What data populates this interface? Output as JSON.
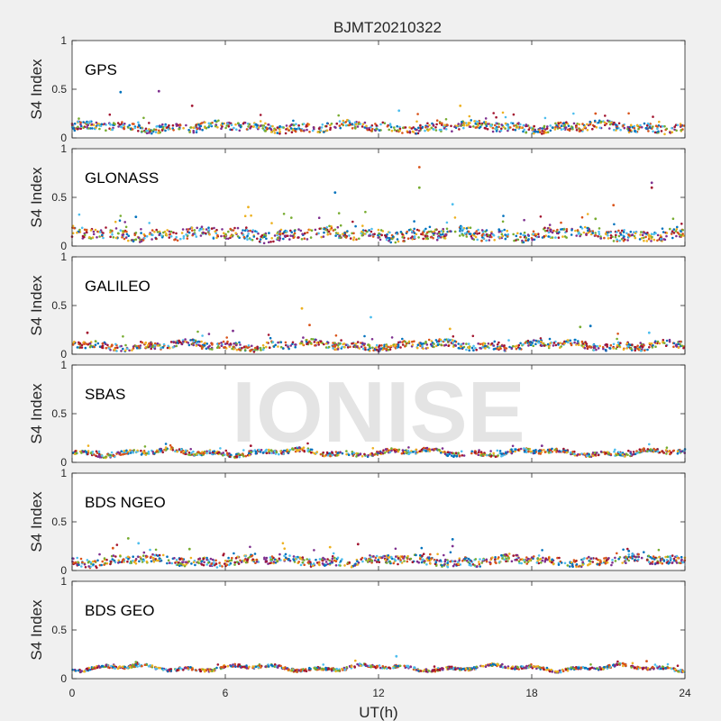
{
  "figure": {
    "title": "BJMT20210322",
    "xlabel": "UT(h)",
    "watermark": "IONISE",
    "background": "#f0f0f0",
    "axes_background": "#ffffff",
    "watermark_color": "#e0e0e0"
  },
  "palette": [
    "#0072bd",
    "#d95319",
    "#edb120",
    "#7e2f8e",
    "#77ac30",
    "#4dbeee",
    "#a2142f"
  ],
  "chart_data": [
    {
      "type": "scatter",
      "label": "GPS",
      "ylabel": "S4 Index",
      "xlim": [
        0,
        24
      ],
      "ylim": [
        0,
        1
      ],
      "xticks": [
        0,
        6,
        12,
        18,
        24
      ],
      "yticks": [
        0,
        0.5,
        1
      ],
      "baseline": 0.11,
      "spread": 0.06,
      "outliers": [
        [
          1.9,
          0.47
        ],
        [
          3.4,
          0.48
        ],
        [
          4.7,
          0.33
        ],
        [
          15.2,
          0.33
        ],
        [
          12.8,
          0.28
        ],
        [
          20.5,
          0.25
        ]
      ]
    },
    {
      "type": "scatter",
      "label": "GLONASS",
      "ylabel": "S4 Index",
      "xlim": [
        0,
        24
      ],
      "ylim": [
        0,
        1
      ],
      "xticks": [
        0,
        6,
        12,
        18,
        24
      ],
      "yticks": [
        0,
        0.5,
        1
      ],
      "baseline": 0.12,
      "spread": 0.08,
      "outliers": [
        [
          13.6,
          0.81
        ],
        [
          13.6,
          0.6
        ],
        [
          10.3,
          0.55
        ],
        [
          22.7,
          0.65
        ],
        [
          22.7,
          0.6
        ],
        [
          6.9,
          0.4
        ],
        [
          14.9,
          0.43
        ],
        [
          21.2,
          0.42
        ],
        [
          20.5,
          0.28
        ],
        [
          2.5,
          0.3
        ]
      ]
    },
    {
      "type": "scatter",
      "label": "GALILEO",
      "ylabel": "S4 Index",
      "xlim": [
        0,
        24
      ],
      "ylim": [
        0,
        1
      ],
      "xticks": [
        0,
        6,
        12,
        18,
        24
      ],
      "yticks": [
        0,
        0.5,
        1
      ],
      "baseline": 0.09,
      "spread": 0.05,
      "outliers": [
        [
          9.0,
          0.47
        ],
        [
          11.7,
          0.38
        ],
        [
          9.3,
          0.3
        ],
        [
          19.9,
          0.28
        ],
        [
          20.3,
          0.29
        ],
        [
          6.3,
          0.24
        ],
        [
          0.6,
          0.22
        ],
        [
          14.8,
          0.26
        ],
        [
          22.6,
          0.22
        ]
      ]
    },
    {
      "type": "scatter",
      "label": "SBAS",
      "ylabel": "S4 Index",
      "xlim": [
        0,
        24
      ],
      "ylim": [
        0,
        1
      ],
      "xticks": [
        0,
        6,
        12,
        18,
        24
      ],
      "yticks": [
        0,
        0.5,
        1
      ],
      "baseline": 0.1,
      "spread": 0.03,
      "outliers": [
        [
          18.4,
          0.17
        ],
        [
          7.0,
          0.17
        ]
      ]
    },
    {
      "type": "scatter",
      "label": "BDS NGEO",
      "ylabel": "S4 Index",
      "xlim": [
        0,
        24
      ],
      "ylim": [
        0,
        1
      ],
      "xticks": [
        0,
        6,
        12,
        18,
        24
      ],
      "yticks": [
        0,
        0.5,
        1
      ],
      "baseline": 0.1,
      "spread": 0.06,
      "outliers": [
        [
          2.2,
          0.33
        ],
        [
          14.9,
          0.32
        ],
        [
          14.9,
          0.25
        ],
        [
          11.2,
          0.27
        ],
        [
          10.1,
          0.24
        ],
        [
          2.6,
          0.28
        ],
        [
          1.6,
          0.23
        ],
        [
          4.6,
          0.22
        ],
        [
          21.8,
          0.2
        ]
      ]
    },
    {
      "type": "scatter",
      "label": "BDS GEO",
      "ylabel": "S4 Index",
      "xlim": [
        0,
        24
      ],
      "ylim": [
        0,
        1
      ],
      "xticks": [
        0,
        6,
        12,
        18,
        24
      ],
      "yticks": [
        0,
        0.5,
        1
      ],
      "baseline": 0.11,
      "spread": 0.02,
      "outliers": [
        [
          12.7,
          0.23
        ],
        [
          22.5,
          0.18
        ],
        [
          2.5,
          0.17
        ]
      ]
    }
  ]
}
